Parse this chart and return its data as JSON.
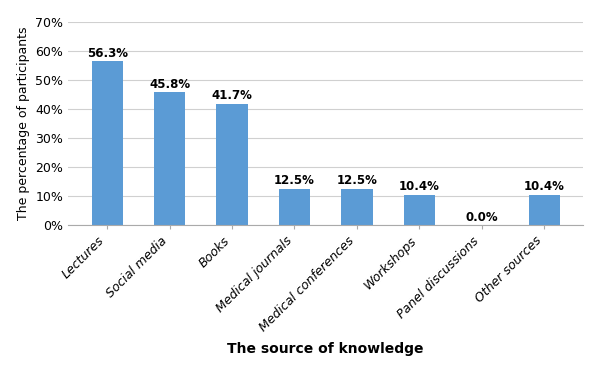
{
  "categories": [
    "Lectures",
    "Social media",
    "Books",
    "Medical journals",
    "Medical conferences",
    "Workshops",
    "Panel discussions",
    "Other sources"
  ],
  "values": [
    56.3,
    45.8,
    41.7,
    12.5,
    12.5,
    10.4,
    0.0,
    10.4
  ],
  "bar_color": "#5B9BD5",
  "xlabel": "The source of knowledge",
  "ylabel": "The percentage of participants",
  "ylim": [
    0,
    70
  ],
  "yticks": [
    0,
    10,
    20,
    30,
    40,
    50,
    60,
    70
  ],
  "ytick_labels": [
    "0%",
    "10%",
    "20%",
    "30%",
    "40%",
    "50%",
    "60%",
    "70%"
  ],
  "tick_fontsize": 9,
  "value_fontsize": 8.5,
  "xlabel_fontsize": 10,
  "ylabel_fontsize": 9,
  "background_color": "#ffffff"
}
